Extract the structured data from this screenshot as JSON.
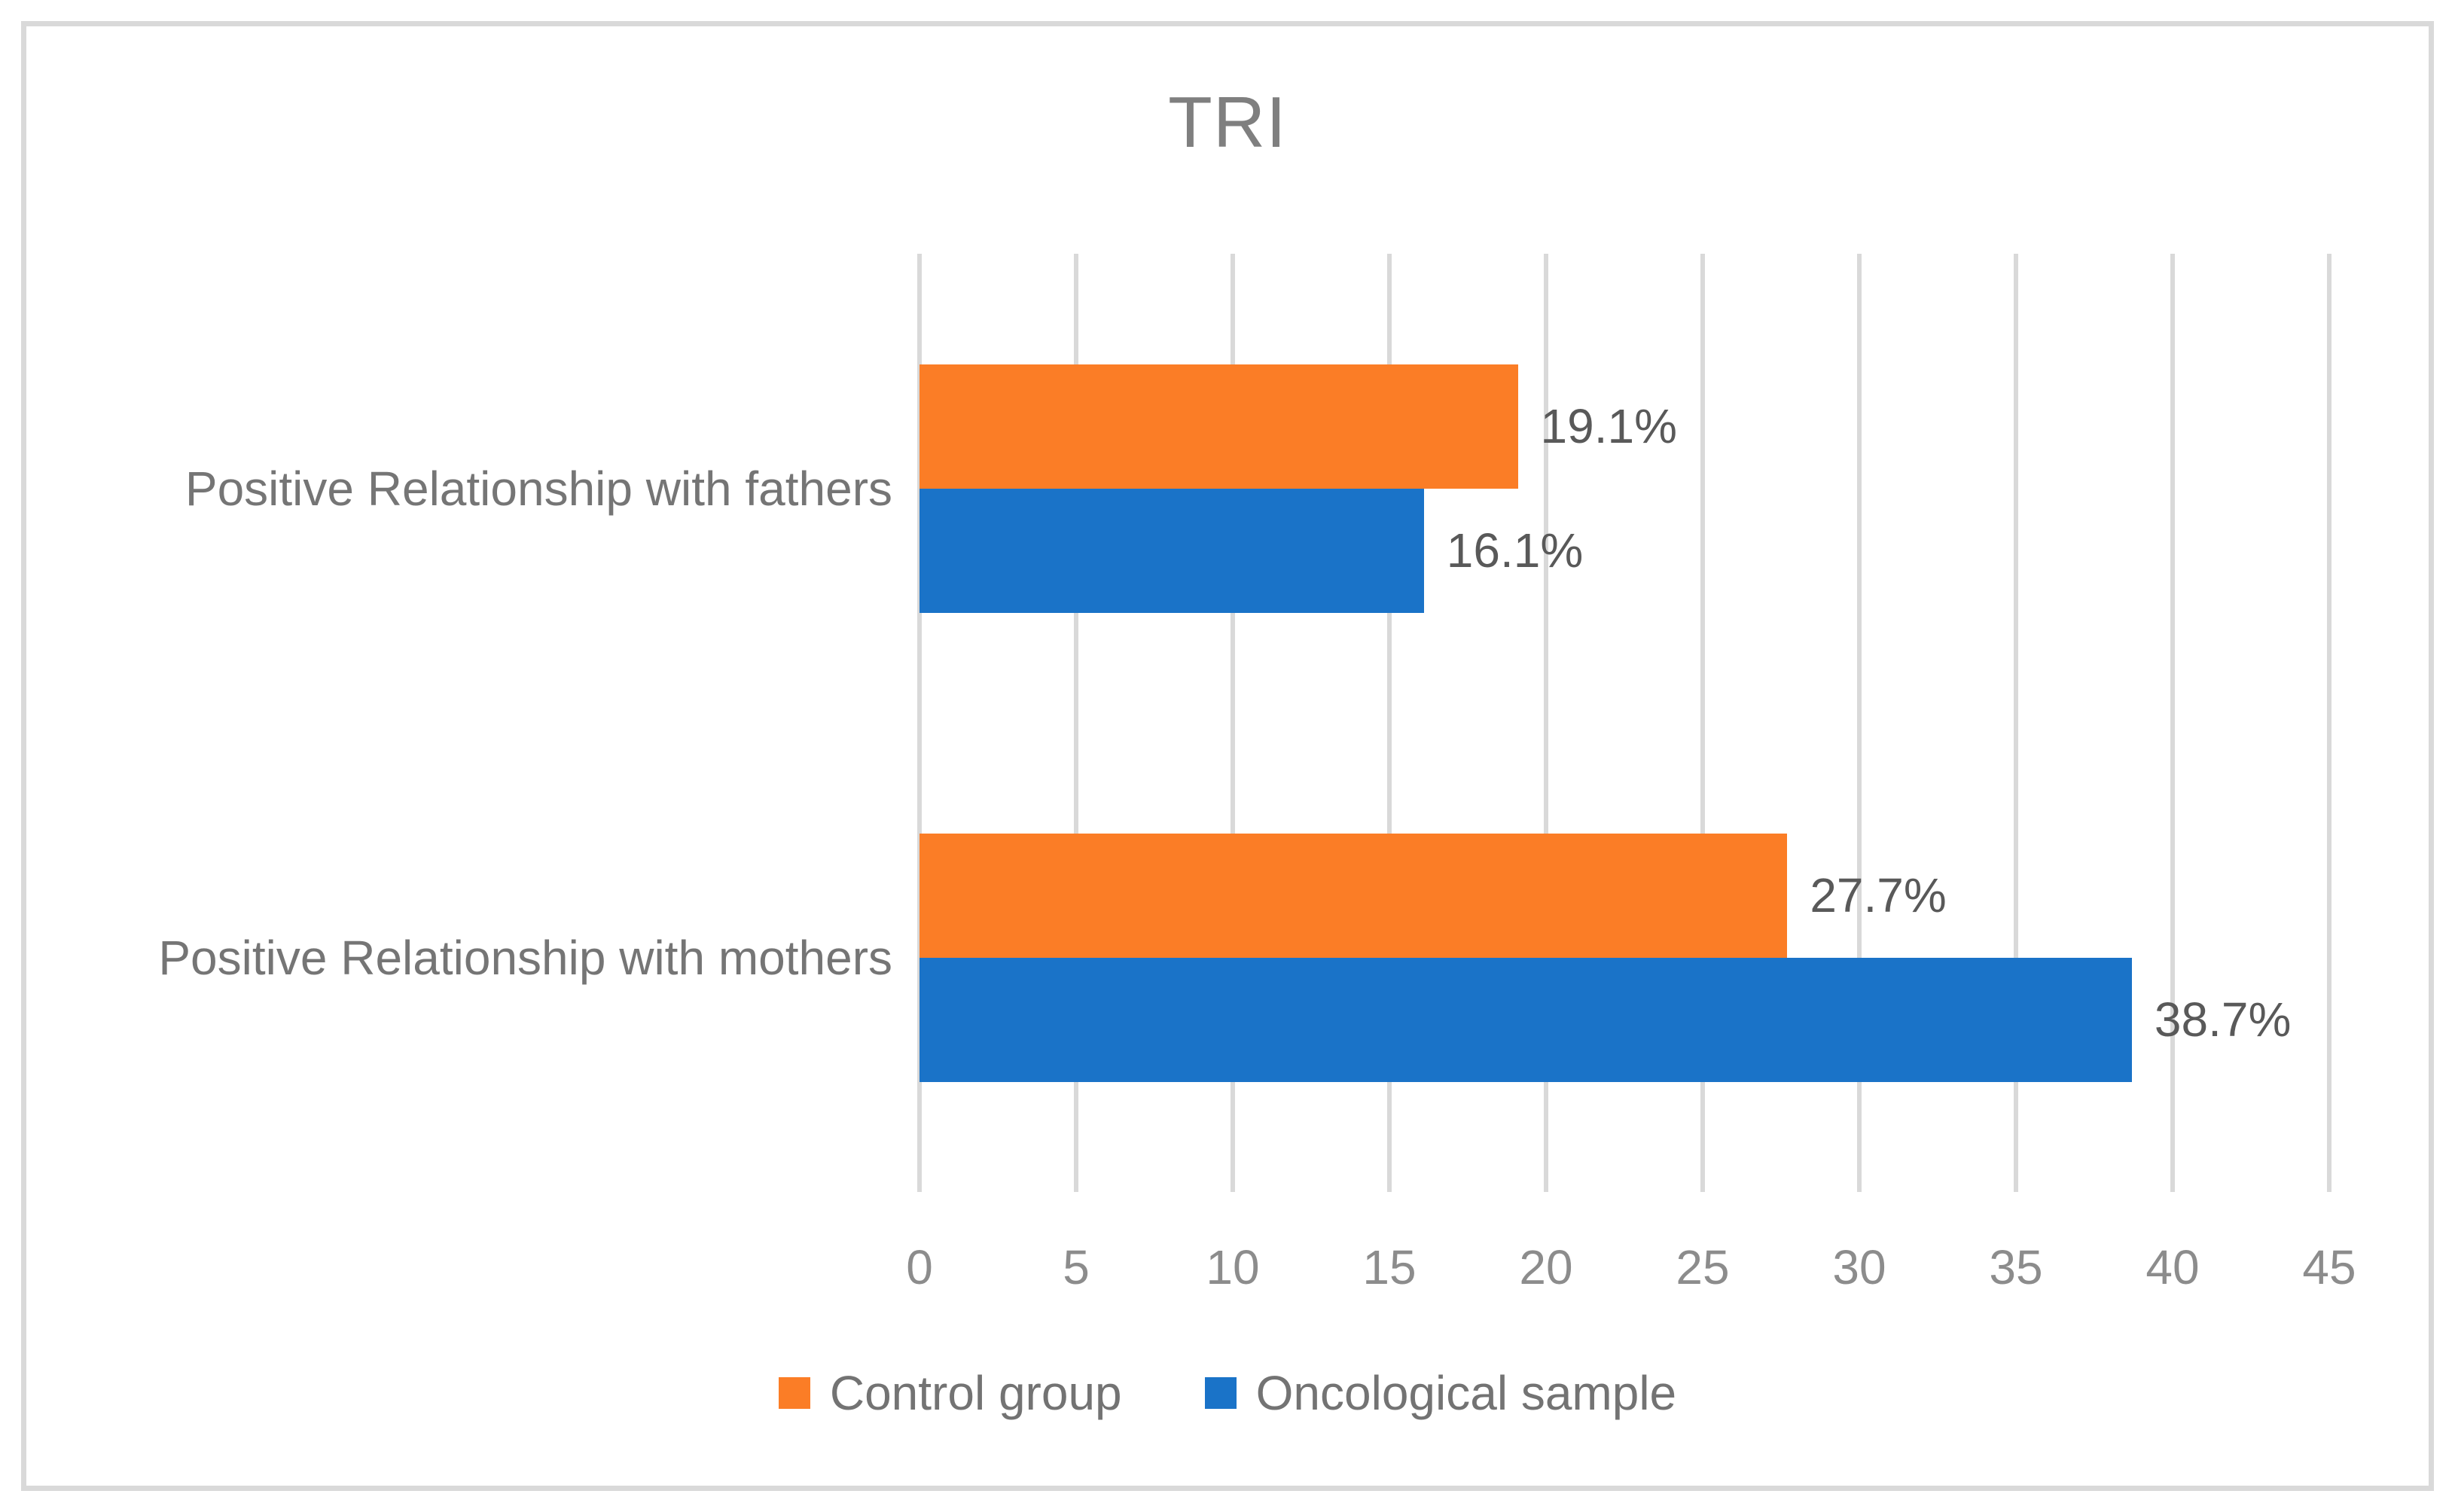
{
  "chart_data": {
    "type": "bar",
    "orientation": "horizontal",
    "title": "TRI",
    "categories": [
      "Positive Relationship with fathers",
      "Positive Relationship with mothers"
    ],
    "series": [
      {
        "name": "Control group",
        "color": "#FB7D26",
        "values": [
          19.1,
          27.7
        ],
        "labels": [
          "19.1%",
          "27.7%"
        ]
      },
      {
        "name": "Oncological sample",
        "color": "#1A73C8",
        "values": [
          16.1,
          38.7
        ],
        "labels": [
          "16.1%",
          "38.7%"
        ]
      }
    ],
    "x_ticks": [
      0,
      5,
      10,
      15,
      20,
      25,
      30,
      35,
      40,
      45
    ],
    "xlim": [
      0,
      45
    ],
    "grid": "vertical",
    "legend_position": "bottom",
    "colors": {
      "gridline": "#D9D9D9",
      "frame_border": "#D9D9D9",
      "title_text": "#7F7F7F",
      "category_text": "#757575",
      "tick_text": "#8C8C8C",
      "data_label_text": "#595959",
      "legend_text": "#737373"
    }
  }
}
